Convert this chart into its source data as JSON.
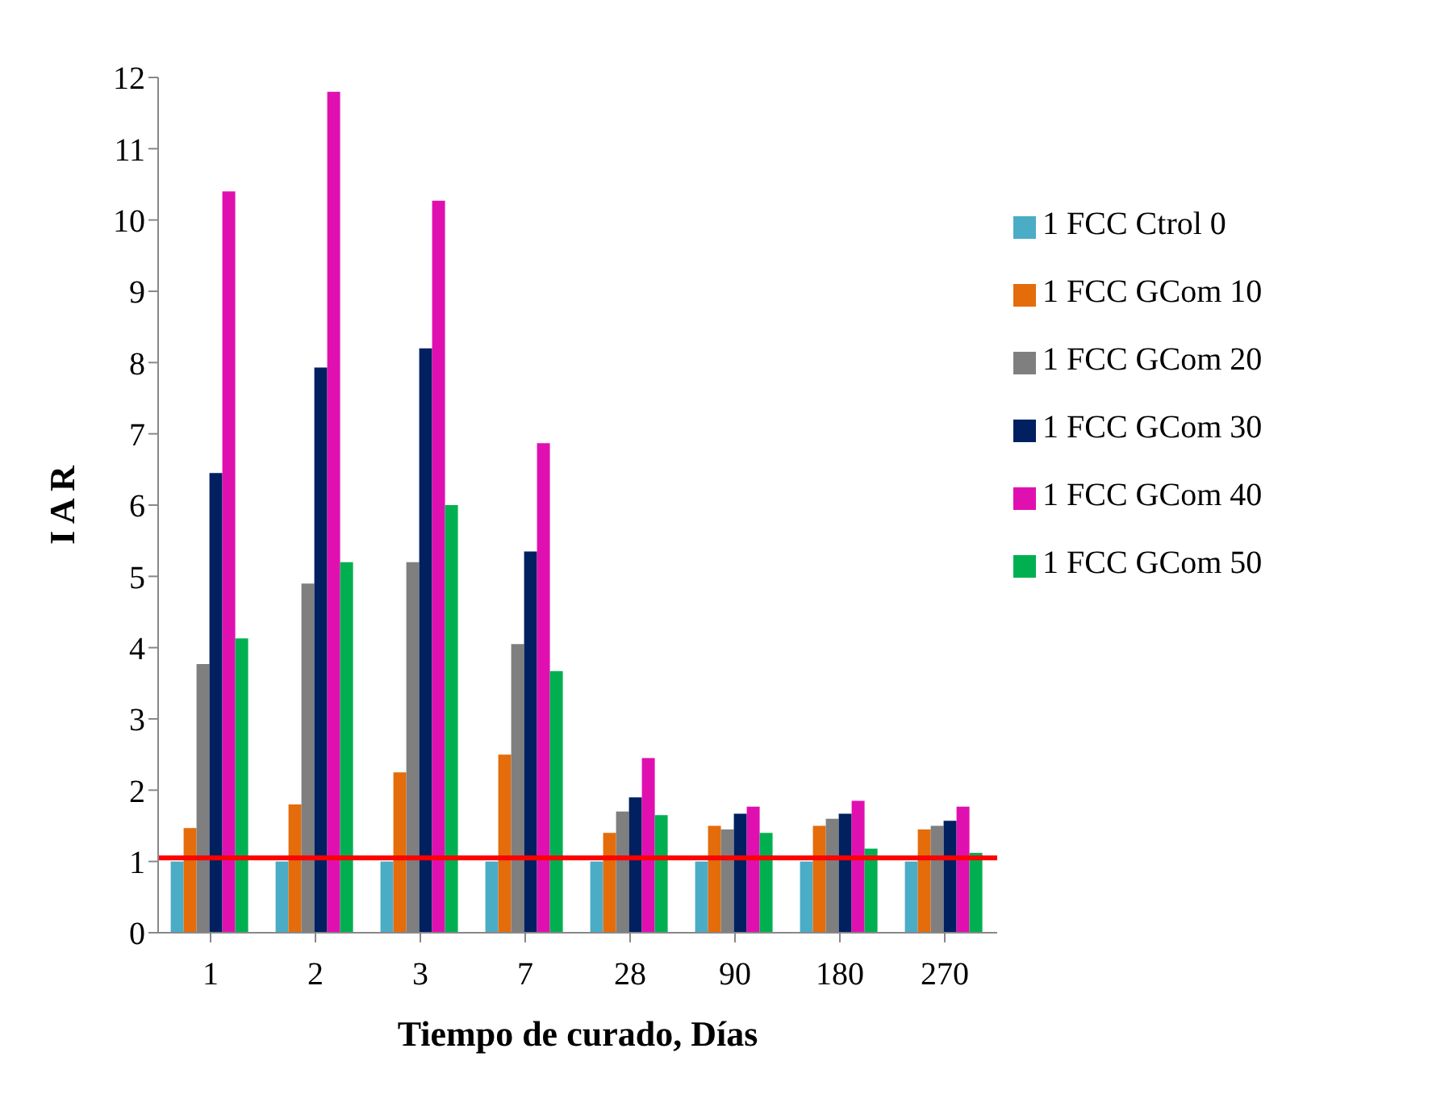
{
  "chart_data": {
    "type": "bar",
    "xlabel": "Tiempo de curado,   Días",
    "ylabel": "I A R",
    "categories": [
      "1",
      "2",
      "3",
      "7",
      "28",
      "90",
      "180",
      "270"
    ],
    "series": [
      {
        "name": "1 FCC Ctrol 0",
        "color": "#4bacc6",
        "values": [
          1,
          1,
          1,
          1,
          1,
          1,
          1,
          1
        ]
      },
      {
        "name": "1 FCC GCom 10",
        "color": "#e46c0a",
        "values": [
          1.47,
          1.8,
          2.25,
          2.5,
          1.4,
          1.5,
          1.5,
          1.45
        ]
      },
      {
        "name": "1 FCC GCom 20",
        "color": "#7f7f7f",
        "values": [
          3.77,
          4.9,
          5.2,
          4.05,
          1.7,
          1.45,
          1.6,
          1.5
        ]
      },
      {
        "name": "1 FCC GCom 30",
        "color": "#002060",
        "values": [
          6.45,
          7.93,
          8.2,
          5.35,
          1.9,
          1.67,
          1.67,
          1.57
        ]
      },
      {
        "name": "1 FCC GCom 40",
        "color": "#e010b0",
        "values": [
          10.4,
          11.8,
          10.27,
          6.87,
          2.45,
          1.77,
          1.85,
          1.77
        ]
      },
      {
        "name": "1 FCC GCom 50",
        "color": "#00b050",
        "values": [
          4.13,
          5.2,
          6.0,
          3.67,
          1.65,
          1.4,
          1.18,
          1.12
        ]
      }
    ],
    "ylim": [
      0,
      12
    ],
    "yticks": [
      0,
      1,
      2,
      3,
      4,
      5,
      6,
      7,
      8,
      9,
      10,
      11,
      12
    ],
    "ref_lines": [
      {
        "axis": "y",
        "value": 1.05,
        "color": "#ff0000"
      }
    ],
    "grid": false,
    "legend": "right"
  }
}
